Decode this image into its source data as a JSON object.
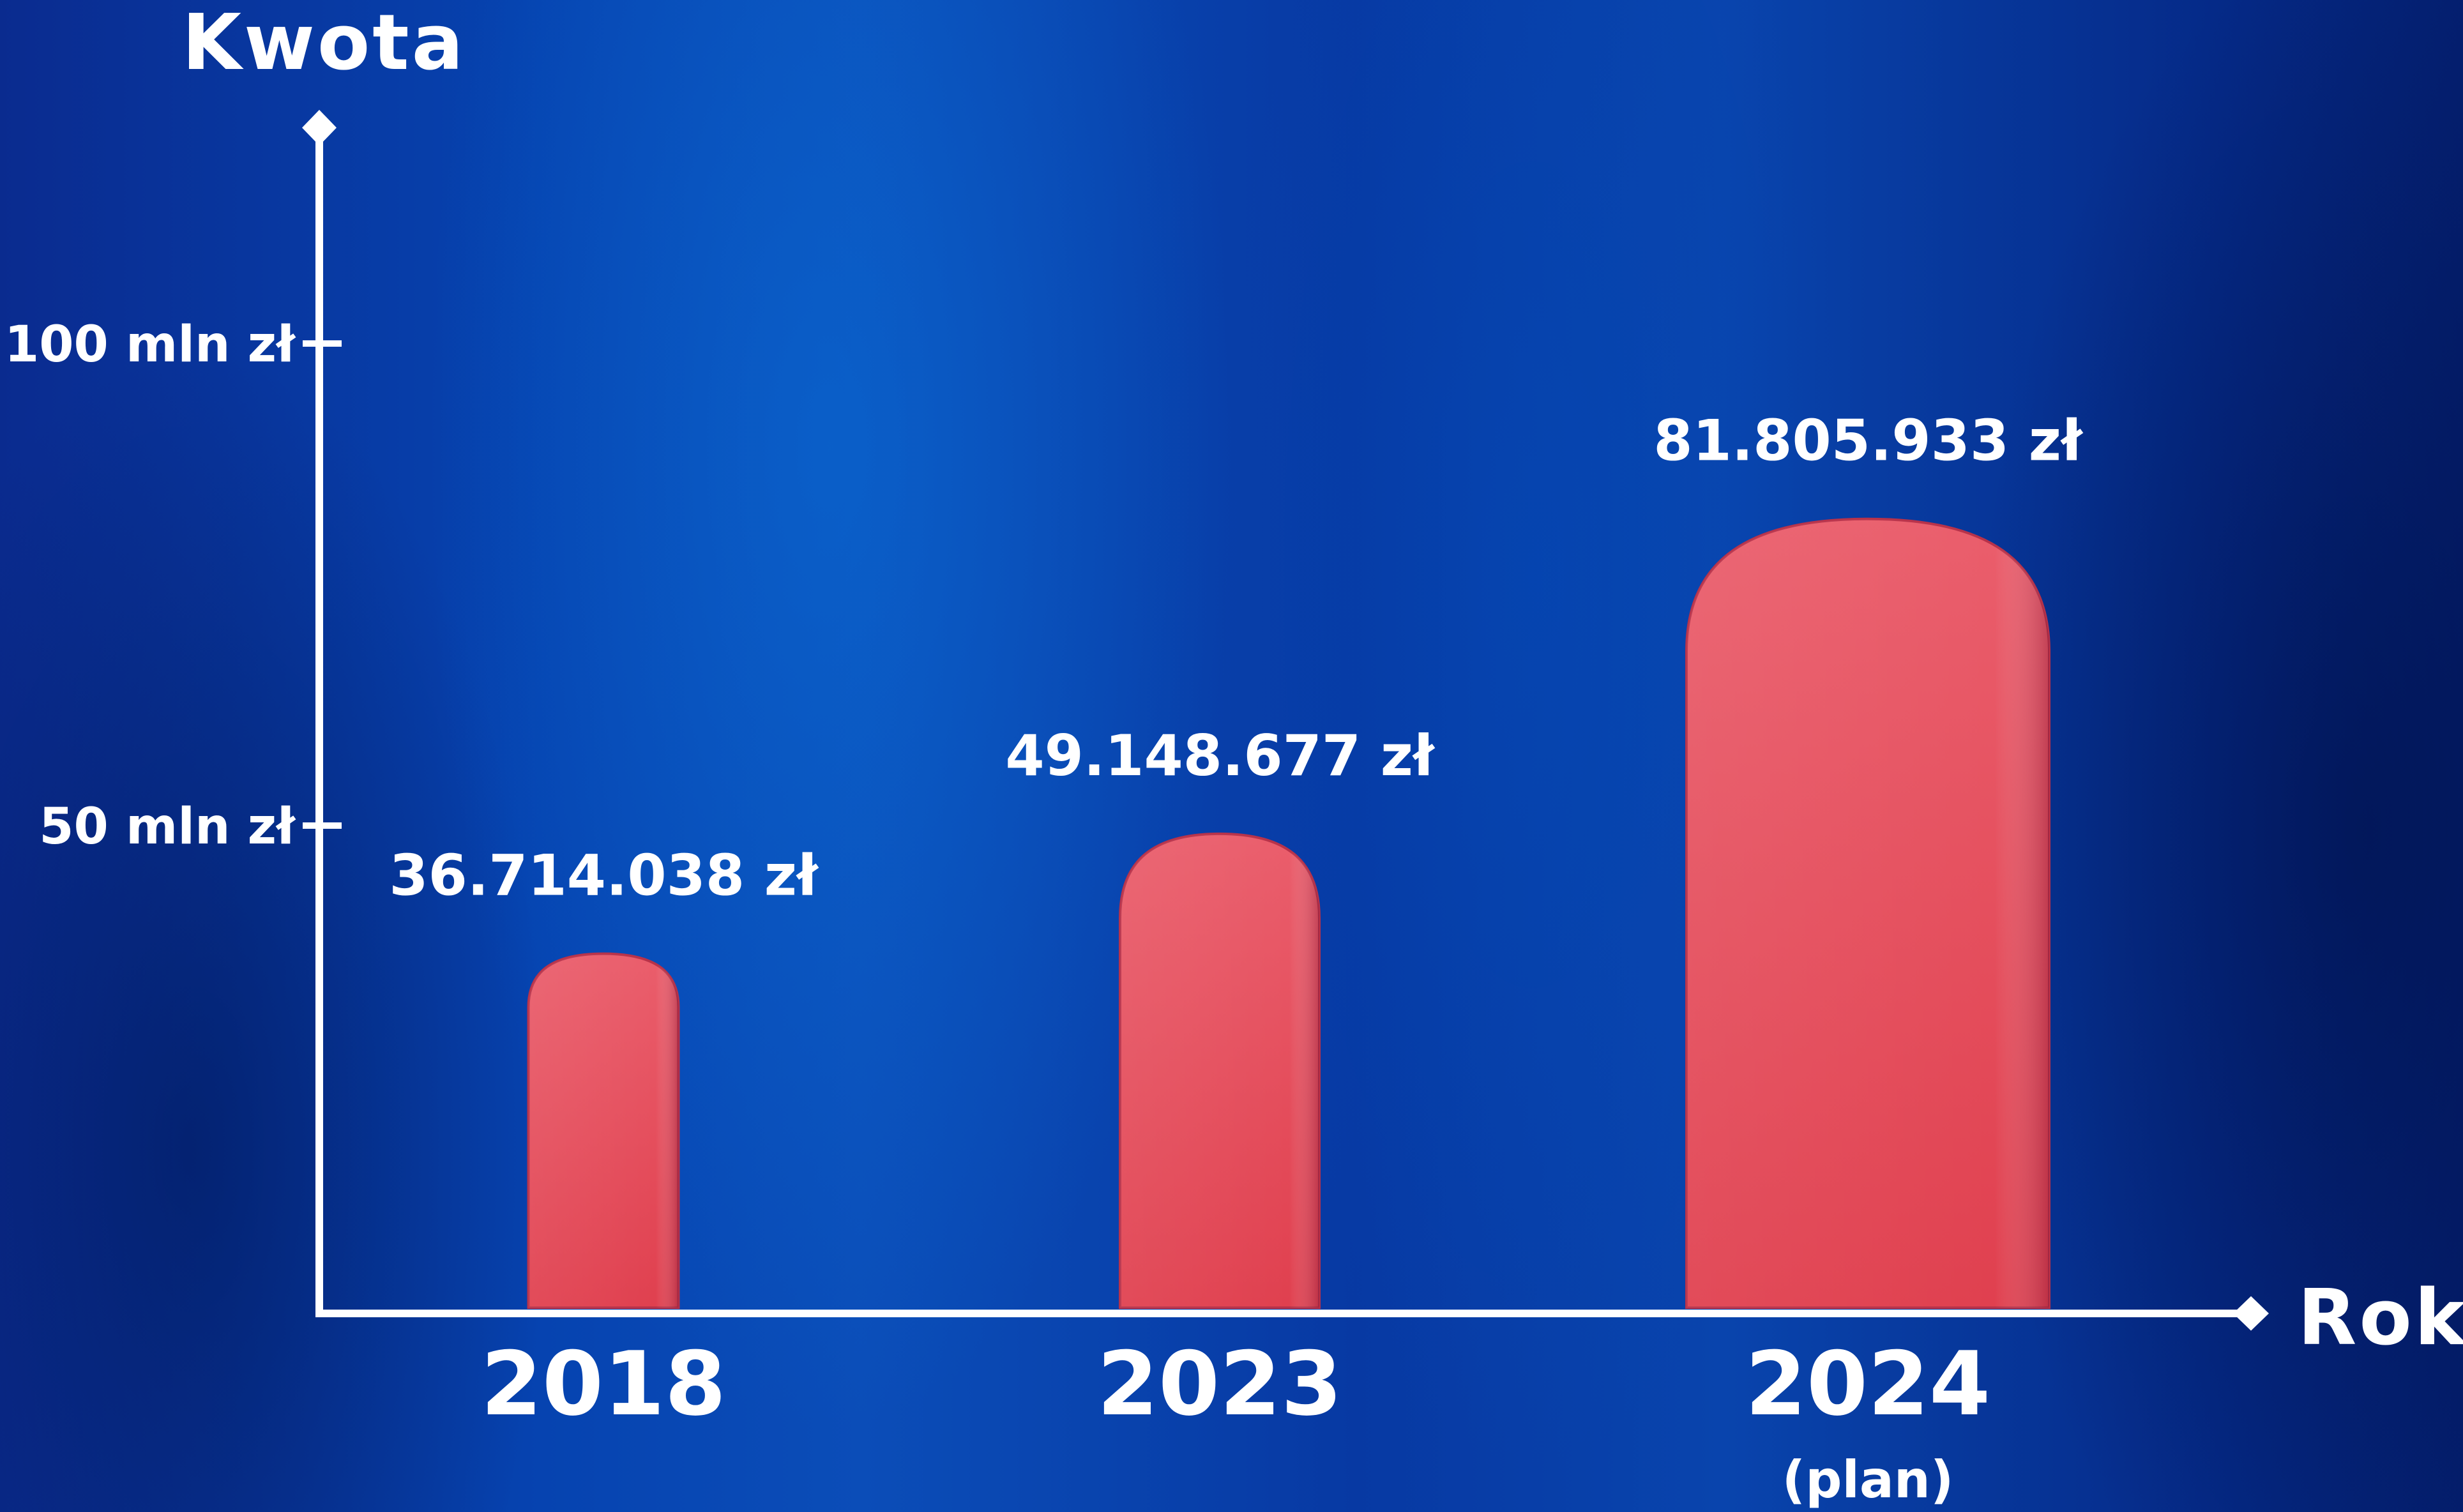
{
  "chart_data": {
    "type": "bar",
    "xlabel": "Rok",
    "ylabel": "Kwota",
    "categories": [
      "2018",
      "2023",
      "2024"
    ],
    "category_notes": [
      "",
      "",
      "(plan)"
    ],
    "values": [
      36714038,
      49148677,
      81805933
    ],
    "value_labels": [
      "36.714.038 zł",
      "49.148.677 zł",
      "81.805.933 zł"
    ],
    "yticks": [
      {
        "value": 50000000,
        "label": "50 mln zł"
      },
      {
        "value": 100000000,
        "label": "100 mln zł"
      }
    ],
    "ylim": [
      0,
      120000000
    ],
    "grid": false,
    "legend": "none",
    "colors": {
      "bar": "#e8525f",
      "bar_edge": "#b8324a",
      "axis": "#ffffff",
      "text": "#ffffff"
    }
  }
}
